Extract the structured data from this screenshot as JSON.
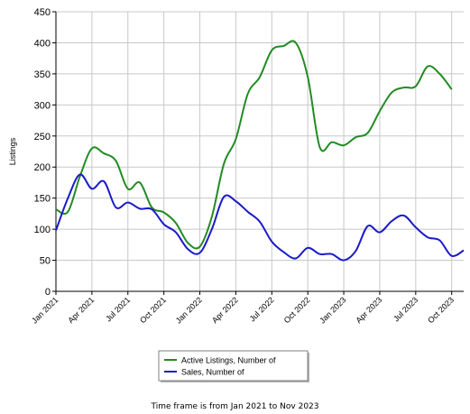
{
  "chart_data": {
    "type": "line",
    "ylabel": "Listings",
    "xlabel": "",
    "ylim": [
      0,
      450
    ],
    "yticks": [
      0,
      50,
      100,
      150,
      200,
      250,
      300,
      350,
      400,
      450
    ],
    "xticks": [
      {
        "label": "Jan 2021",
        "x": 0
      },
      {
        "label": "Apr 2021",
        "x": 3
      },
      {
        "label": "Jul 2021",
        "x": 6
      },
      {
        "label": "Oct 2021",
        "x": 9
      },
      {
        "label": "Jan 2022",
        "x": 12
      },
      {
        "label": "Apr 2022",
        "x": 15
      },
      {
        "label": "Jul 2022",
        "x": 18
      },
      {
        "label": "Oct 2022",
        "x": 21
      },
      {
        "label": "Jan 2023",
        "x": 24
      },
      {
        "label": "Apr 2023",
        "x": 27
      },
      {
        "label": "Jul 2023",
        "x": 30
      },
      {
        "label": "Oct 2023",
        "x": 33
      }
    ],
    "grid": true,
    "legend_position": "bottom-center",
    "series": [
      {
        "name": "Active Listings, Number of",
        "color": "#228b22",
        "values": [
          132,
          128,
          185,
          230,
          222,
          210,
          165,
          175,
          135,
          127,
          110,
          78,
          72,
          120,
          205,
          245,
          318,
          345,
          388,
          395,
          400,
          345,
          232,
          240,
          235,
          248,
          255,
          290,
          320,
          328,
          330,
          362,
          350,
          325
        ]
      },
      {
        "name": "Sales, Number of",
        "color": "#1a1ac8",
        "values": [
          98,
          150,
          188,
          165,
          177,
          135,
          143,
          133,
          132,
          108,
          95,
          68,
          62,
          100,
          152,
          145,
          128,
          112,
          80,
          63,
          53,
          70,
          60,
          60,
          50,
          65,
          105,
          95,
          113,
          122,
          103,
          87,
          82,
          57,
          66
        ]
      }
    ],
    "x_count": 35,
    "footnote": "Time frame is from Jan 2021 to Nov 2023"
  }
}
